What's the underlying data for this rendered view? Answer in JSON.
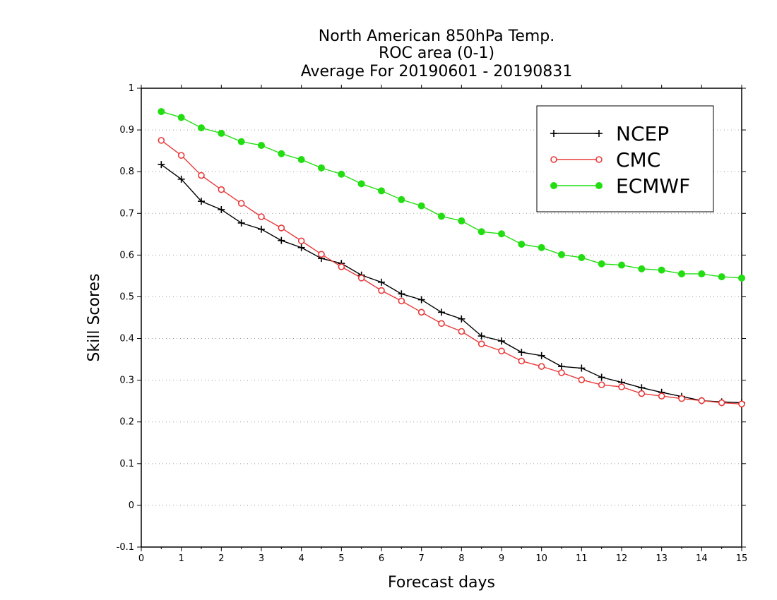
{
  "chart_data": {
    "type": "line",
    "title": [
      "North American 850hPa Temp.",
      "ROC area (0-1)",
      "Average For 20190601 - 20190831"
    ],
    "xlabel": "Forecast days",
    "ylabel": "Skill Scores",
    "xlim": [
      0,
      15
    ],
    "ylim": [
      -0.1,
      1
    ],
    "xticks": [
      "0",
      "1",
      "2",
      "3",
      "4",
      "5",
      "6",
      "7",
      "8",
      "9",
      "10",
      "11",
      "12",
      "13",
      "14",
      "15"
    ],
    "yticks": [
      "-0.1",
      "0",
      "0.1",
      "0.2",
      "0.3",
      "0.4",
      "0.5",
      "0.6",
      "0.7",
      "0.8",
      "0.9",
      "1"
    ],
    "grid": "horizontal dotted",
    "legend_position": "top-right",
    "x": [
      0.5,
      1,
      1.5,
      2,
      2.5,
      3,
      3.5,
      4,
      4.5,
      5,
      5.5,
      6,
      6.5,
      7,
      7.5,
      8,
      8.5,
      9,
      9.5,
      10,
      10.5,
      11,
      11.5,
      12,
      12.5,
      13,
      13.5,
      14,
      14.5,
      15
    ],
    "series": [
      {
        "name": "NCEP",
        "color": "#000000",
        "marker": "plus",
        "values": [
          0.817,
          0.782,
          0.729,
          0.709,
          0.677,
          0.662,
          0.635,
          0.618,
          0.592,
          0.58,
          0.552,
          0.535,
          0.507,
          0.493,
          0.463,
          0.447,
          0.406,
          0.394,
          0.367,
          0.359,
          0.333,
          0.329,
          0.307,
          0.295,
          0.282,
          0.271,
          0.261,
          0.251,
          0.248,
          0.246
        ]
      },
      {
        "name": "CMC",
        "color": "#e83a3a",
        "marker": "open-circle",
        "values": [
          0.875,
          0.839,
          0.791,
          0.757,
          0.724,
          0.692,
          0.665,
          0.634,
          0.602,
          0.572,
          0.545,
          0.515,
          0.49,
          0.463,
          0.436,
          0.417,
          0.387,
          0.37,
          0.346,
          0.333,
          0.318,
          0.301,
          0.289,
          0.284,
          0.268,
          0.262,
          0.256,
          0.251,
          0.246,
          0.243
        ]
      },
      {
        "name": "ECMWF",
        "color": "#22dd11",
        "marker": "filled-circle",
        "values": [
          0.944,
          0.93,
          0.905,
          0.892,
          0.872,
          0.863,
          0.843,
          0.829,
          0.809,
          0.794,
          0.771,
          0.754,
          0.733,
          0.718,
          0.693,
          0.682,
          0.656,
          0.651,
          0.626,
          0.618,
          0.601,
          0.594,
          0.579,
          0.576,
          0.567,
          0.564,
          0.555,
          0.555,
          0.548,
          0.545
        ]
      }
    ]
  }
}
